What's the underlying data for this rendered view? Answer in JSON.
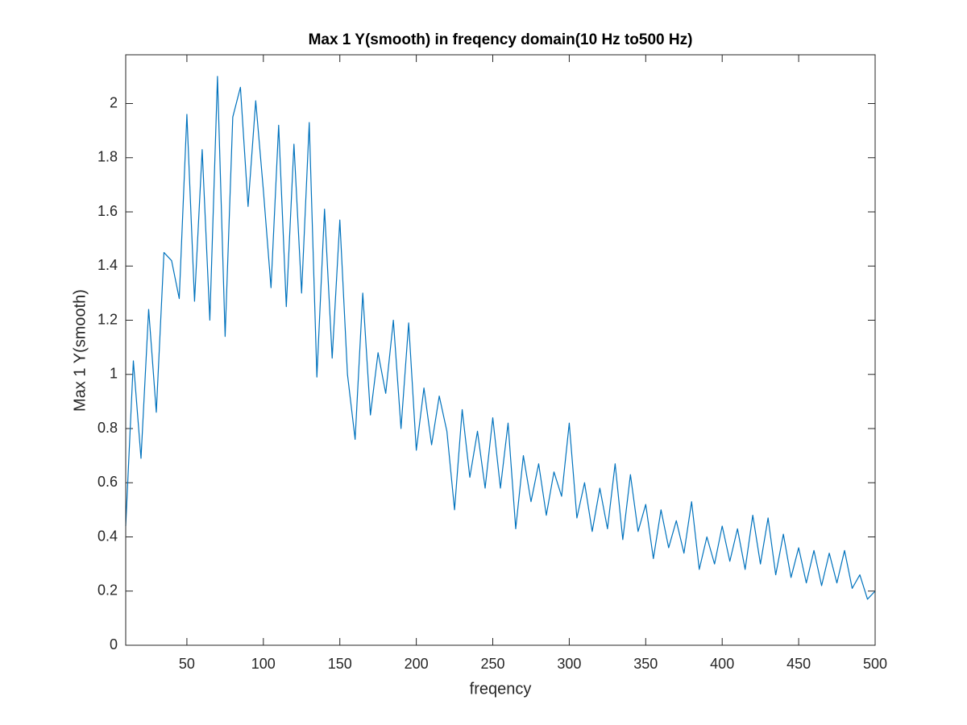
{
  "chart_data": {
    "type": "line",
    "title": "Max 1 Y(smooth) in freqency domain(10 Hz to500 Hz)",
    "xlabel": "freqency",
    "ylabel": "Max 1 Y(smooth)",
    "x": [
      10,
      15,
      20,
      25,
      30,
      35,
      40,
      45,
      50,
      55,
      60,
      65,
      70,
      75,
      80,
      85,
      90,
      95,
      100,
      105,
      110,
      115,
      120,
      125,
      130,
      135,
      140,
      145,
      150,
      155,
      160,
      165,
      170,
      175,
      180,
      185,
      190,
      195,
      200,
      205,
      210,
      215,
      220,
      225,
      230,
      235,
      240,
      245,
      250,
      255,
      260,
      265,
      270,
      275,
      280,
      285,
      290,
      295,
      300,
      305,
      310,
      315,
      320,
      325,
      330,
      335,
      340,
      345,
      350,
      355,
      360,
      365,
      370,
      375,
      380,
      385,
      390,
      395,
      400,
      405,
      410,
      415,
      420,
      425,
      430,
      435,
      440,
      445,
      450,
      455,
      460,
      465,
      470,
      475,
      480,
      485,
      490,
      495,
      500
    ],
    "series": [
      {
        "name": "Max 1 Y(smooth)",
        "color": "#0072bd",
        "values": [
          0.44,
          1.05,
          0.69,
          1.24,
          0.86,
          1.45,
          1.42,
          1.28,
          1.96,
          1.27,
          1.83,
          1.2,
          2.1,
          1.14,
          1.95,
          2.06,
          1.62,
          2.01,
          1.68,
          1.32,
          1.92,
          1.25,
          1.85,
          1.3,
          1.93,
          0.99,
          1.61,
          1.06,
          1.57,
          1.0,
          0.76,
          1.3,
          0.85,
          1.08,
          0.93,
          1.2,
          0.8,
          1.19,
          0.72,
          0.95,
          0.74,
          0.92,
          0.79,
          0.5,
          0.87,
          0.62,
          0.79,
          0.58,
          0.84,
          0.58,
          0.82,
          0.43,
          0.7,
          0.53,
          0.67,
          0.48,
          0.64,
          0.55,
          0.82,
          0.47,
          0.6,
          0.42,
          0.58,
          0.43,
          0.67,
          0.39,
          0.63,
          0.42,
          0.52,
          0.32,
          0.5,
          0.36,
          0.46,
          0.34,
          0.53,
          0.28,
          0.4,
          0.3,
          0.44,
          0.31,
          0.43,
          0.28,
          0.48,
          0.3,
          0.47,
          0.26,
          0.41,
          0.25,
          0.36,
          0.23,
          0.35,
          0.22,
          0.34,
          0.23,
          0.35,
          0.21,
          0.26,
          0.17,
          0.2
        ]
      }
    ],
    "xlim": [
      10,
      500
    ],
    "xticks": [
      50,
      100,
      150,
      200,
      250,
      300,
      350,
      400,
      450,
      500
    ],
    "ylim": [
      0,
      2.18
    ],
    "yticks": [
      0,
      0.2,
      0.4,
      0.6,
      0.8,
      1,
      1.2,
      1.4,
      1.6,
      1.8,
      2
    ],
    "grid": false
  }
}
